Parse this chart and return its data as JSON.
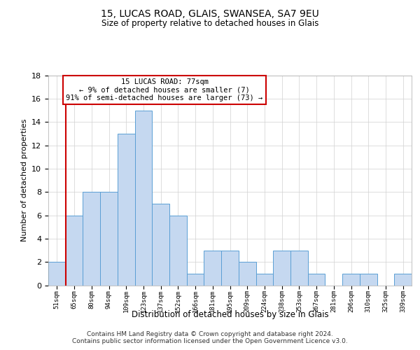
{
  "title1": "15, LUCAS ROAD, GLAIS, SWANSEA, SA7 9EU",
  "title2": "Size of property relative to detached houses in Glais",
  "xlabel": "Distribution of detached houses by size in Glais",
  "ylabel": "Number of detached properties",
  "categories": [
    "51sqm",
    "65sqm",
    "80sqm",
    "94sqm",
    "109sqm",
    "123sqm",
    "137sqm",
    "152sqm",
    "166sqm",
    "181sqm",
    "195sqm",
    "209sqm",
    "224sqm",
    "238sqm",
    "253sqm",
    "267sqm",
    "281sqm",
    "296sqm",
    "310sqm",
    "325sqm",
    "339sqm"
  ],
  "values": [
    2,
    6,
    8,
    8,
    13,
    15,
    7,
    6,
    1,
    3,
    3,
    2,
    1,
    3,
    3,
    1,
    0,
    1,
    1,
    0,
    1
  ],
  "bar_color": "#c5d8f0",
  "bar_edge_color": "#5a9fd4",
  "vline_color": "#cc0000",
  "vline_x": 0.5,
  "annotation_line1": "15 LUCAS ROAD: 77sqm",
  "annotation_line2": "← 9% of detached houses are smaller (7)",
  "annotation_line3": "91% of semi-detached houses are larger (73) →",
  "annotation_box_color": "#ffffff",
  "annotation_box_edge": "#cc0000",
  "ylim": [
    0,
    18
  ],
  "yticks": [
    0,
    2,
    4,
    6,
    8,
    10,
    12,
    14,
    16,
    18
  ],
  "footer_line1": "Contains HM Land Registry data © Crown copyright and database right 2024.",
  "footer_line2": "Contains public sector information licensed under the Open Government Licence v3.0.",
  "bg_color": "#ffffff",
  "grid_color": "#d0d0d0"
}
